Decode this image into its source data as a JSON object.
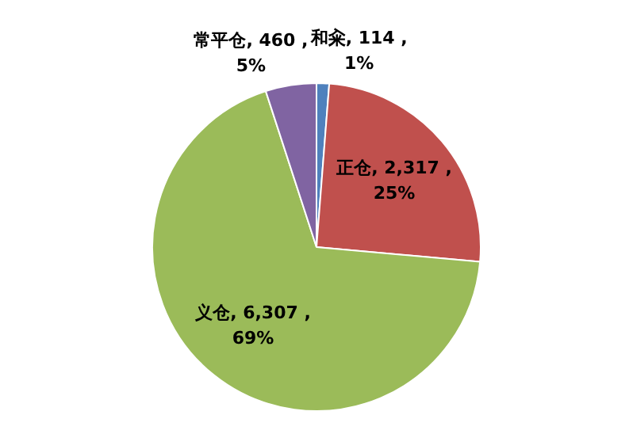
{
  "chart_data": {
    "type": "pie",
    "categories": [
      "和籴",
      "正仓",
      "义仓",
      "常平仓"
    ],
    "values": [
      114,
      2317,
      6307,
      460
    ],
    "colors": [
      "#4f81bd",
      "#c0504d",
      "#9bbb59",
      "#8064a2"
    ],
    "value_labels": [
      "114 ,\n1%",
      "2,317 ,\n25%",
      "6,307 ,\n69%",
      "460 ,\n5%"
    ],
    "legend": false
  }
}
